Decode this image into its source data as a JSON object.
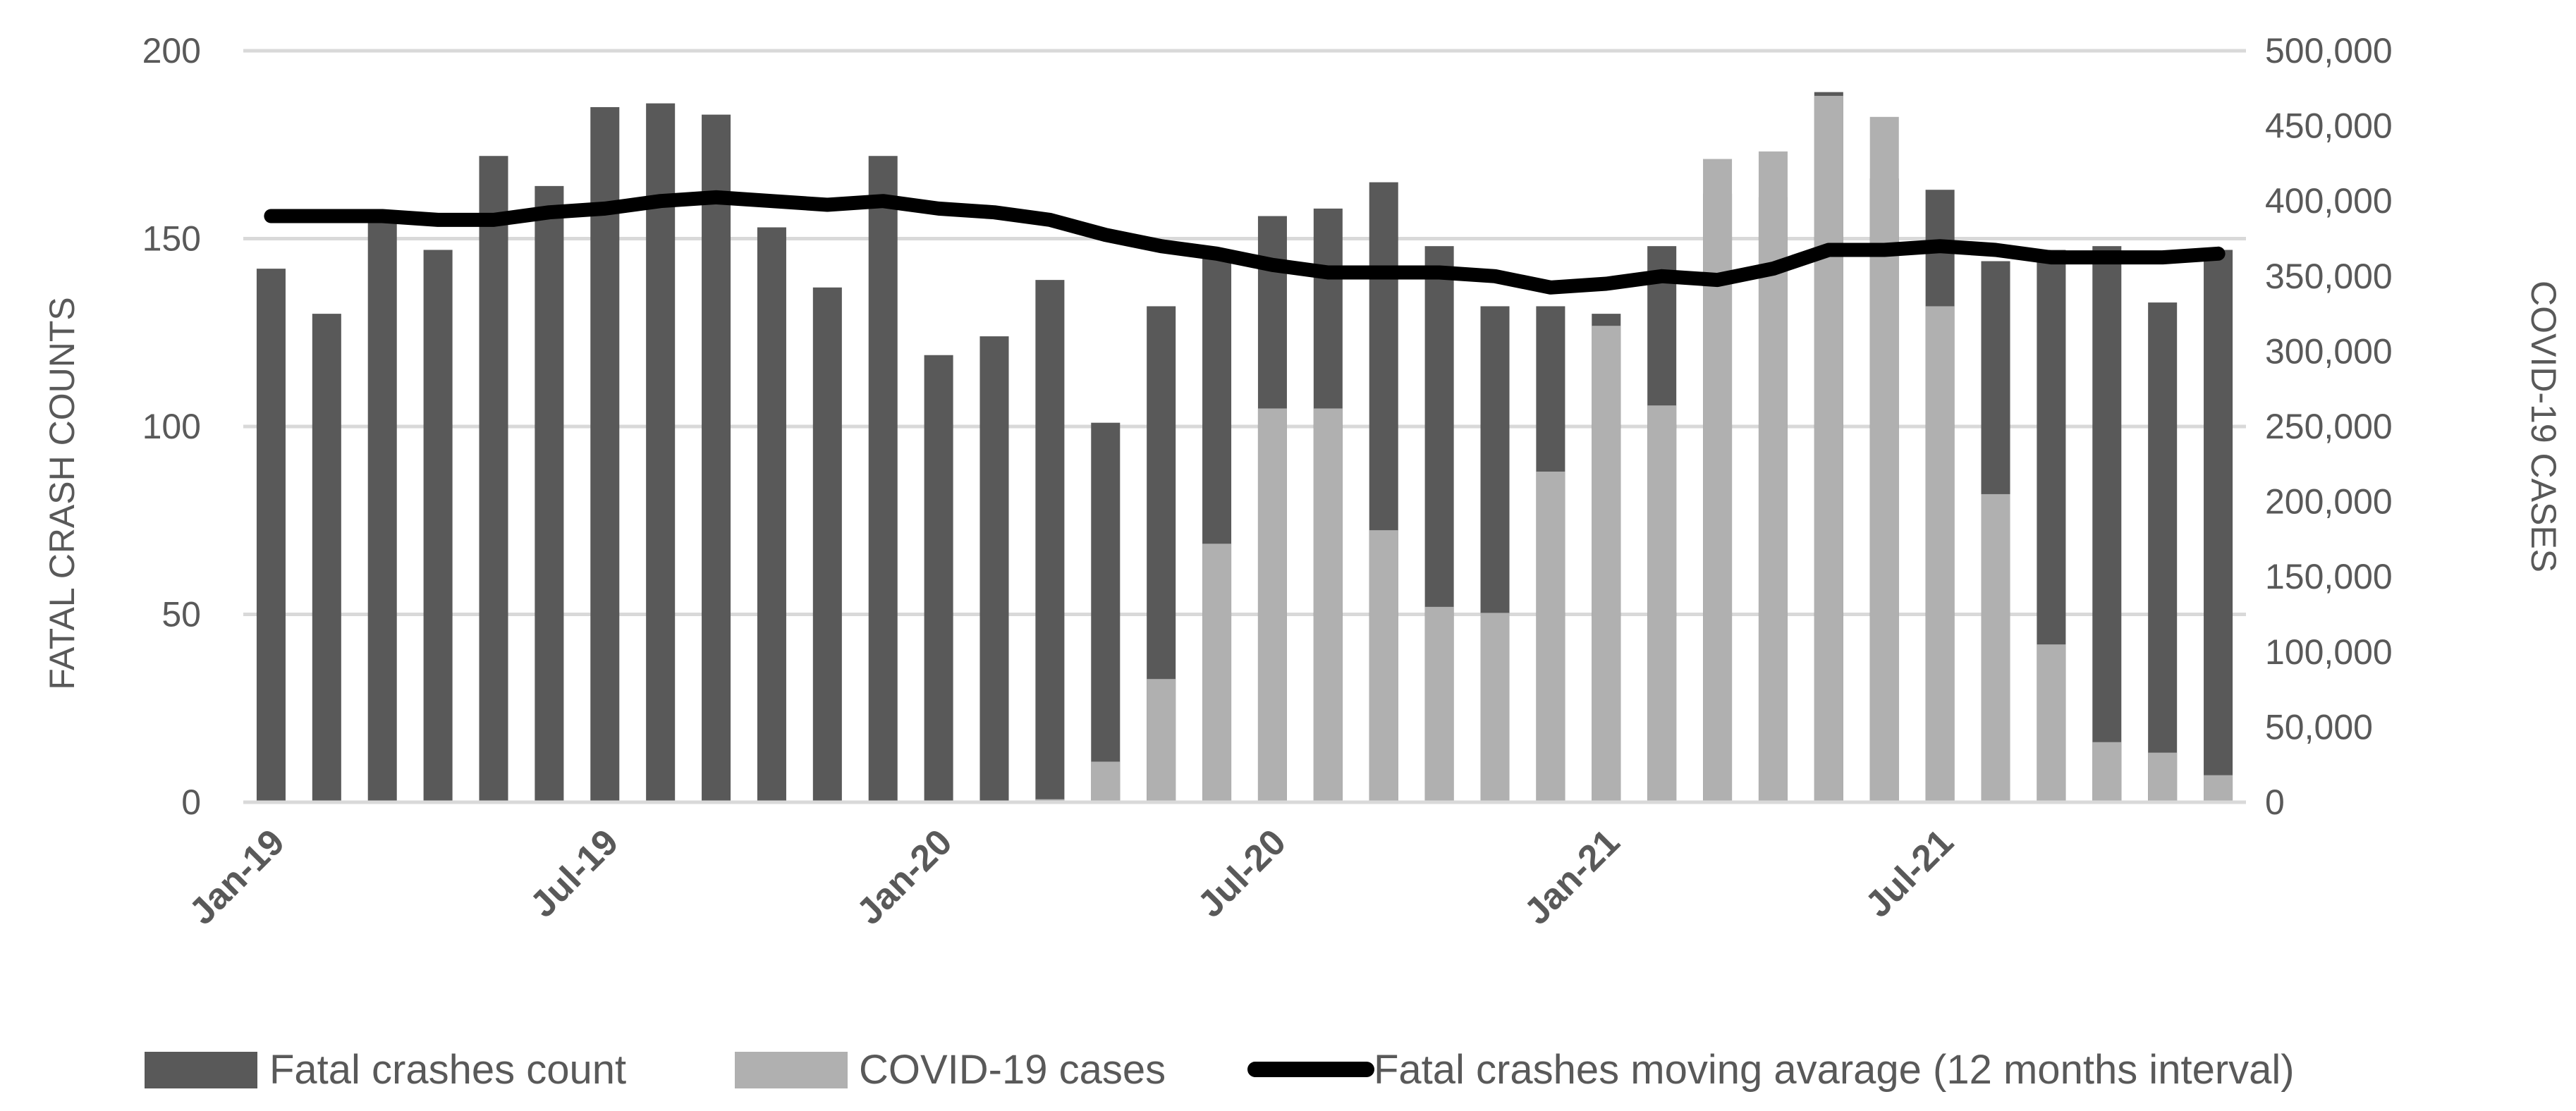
{
  "chart_data": {
    "type": "bar",
    "title": "",
    "xlabel": "",
    "ylabel": "FATAL CRASH COUNTS",
    "y2label": "COVID-19 CASES",
    "ylim": [
      0,
      200
    ],
    "y2lim": [
      0,
      500000
    ],
    "grid": true,
    "legend_position": "bottom",
    "yticks": [
      "0",
      "50",
      "100",
      "150",
      "200"
    ],
    "y2ticks": [
      "0",
      "50,000",
      "100,000",
      "150,000",
      "200,000",
      "250,000",
      "300,000",
      "350,000",
      "400,000",
      "450,000",
      "500,000"
    ],
    "xtick_labels": [
      {
        "index": 0,
        "label": "Jan-19"
      },
      {
        "index": 6,
        "label": "Jul-19"
      },
      {
        "index": 12,
        "label": "Jan-20"
      },
      {
        "index": 18,
        "label": "Jul-20"
      },
      {
        "index": 24,
        "label": "Jan-21"
      },
      {
        "index": 30,
        "label": "Jul-21"
      }
    ],
    "categories": [
      "Jan-19",
      "Feb-19",
      "Mar-19",
      "Apr-19",
      "May-19",
      "Jun-19",
      "Jul-19",
      "Aug-19",
      "Sep-19",
      "Oct-19",
      "Nov-19",
      "Dec-19",
      "Jan-20",
      "Feb-20",
      "Mar-20",
      "Apr-20",
      "May-20",
      "Jun-20",
      "Jul-20",
      "Aug-20",
      "Sep-20",
      "Oct-20",
      "Nov-20",
      "Dec-20",
      "Jan-21",
      "Feb-21",
      "Mar-21",
      "Apr-21",
      "May-21",
      "Jun-21",
      "Jul-21",
      "Aug-21",
      "Sep-21",
      "Oct-21",
      "Nov-21",
      "Dec-21"
    ],
    "series": [
      {
        "name": "Fatal crashes count",
        "axis": "left",
        "kind": "bar",
        "color": "#595959",
        "values": [
          142,
          130,
          155,
          147,
          172,
          164,
          185,
          186,
          183,
          153,
          137,
          172,
          119,
          124,
          139,
          101,
          132,
          147,
          156,
          158,
          165,
          148,
          132,
          132,
          130,
          148,
          162,
          161,
          189,
          166,
          163,
          144,
          147,
          148,
          133,
          147
        ]
      },
      {
        "name": "COVID-19 cases",
        "axis": "right",
        "kind": "bar",
        "color": "#b0b0b0",
        "values": [
          0,
          0,
          0,
          0,
          0,
          0,
          0,
          0,
          0,
          0,
          0,
          0,
          0,
          0,
          2000,
          27000,
          82000,
          172000,
          262000,
          262000,
          181000,
          130000,
          126000,
          220000,
          317000,
          264000,
          428000,
          433000,
          470000,
          456000,
          330000,
          205000,
          105000,
          40000,
          33000,
          18000
        ]
      },
      {
        "name": "Fatal crashes moving avarage (12 months interval)",
        "axis": "left",
        "kind": "line",
        "color": "#000000",
        "values": [
          156,
          156,
          156,
          155,
          155,
          157,
          158,
          160,
          161,
          160,
          159,
          160,
          158,
          157,
          155,
          151,
          148,
          146,
          143,
          141,
          141,
          141,
          140,
          137,
          138,
          140,
          139,
          142,
          147,
          147,
          148,
          147,
          145,
          145,
          145,
          146
        ]
      }
    ],
    "legend": [
      "Fatal crashes count",
      "COVID-19 cases",
      "Fatal crashes moving avarage (12 months interval)"
    ]
  }
}
